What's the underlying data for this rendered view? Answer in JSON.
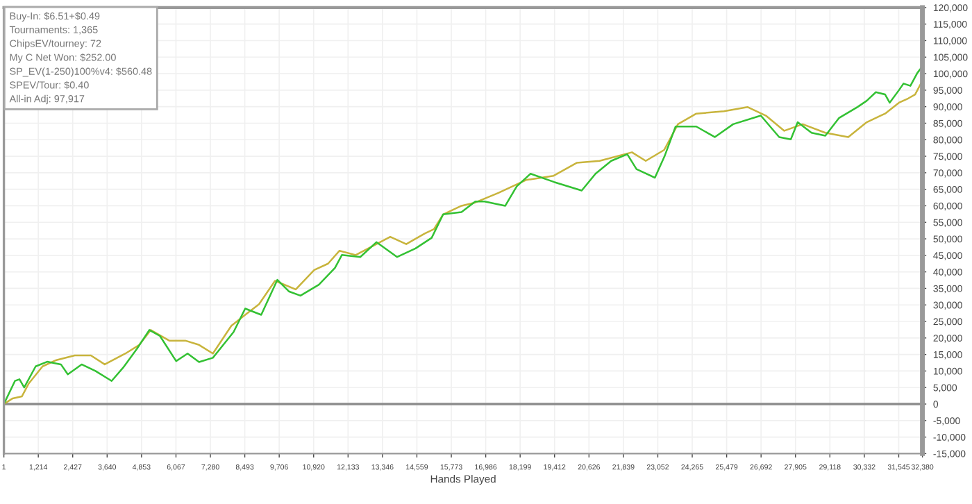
{
  "chart_data": {
    "type": "line",
    "xlabel": "Hands Played",
    "annotations": [
      "Buy-In: $6.51+$0.49",
      "Tournaments: 1,365",
      "ChipsEV/tourney: 72",
      "My C Net Won: $252.00",
      "SP_EV(1-250)100%v4: $560.48",
      "SPEV/Tour: $0.40",
      "All-in Adj: 97,917"
    ],
    "xlim": [
      1,
      32380
    ],
    "xticks": [
      1,
      {
        "value": 1214,
        "label": "1,214"
      },
      {
        "value": 2427,
        "label": "2,427"
      },
      {
        "value": 3640,
        "label": "3,640"
      },
      {
        "value": 4853,
        "label": "4,853"
      },
      {
        "value": 6067,
        "label": "6,067"
      },
      {
        "value": 7280,
        "label": "7,280"
      },
      {
        "value": 8493,
        "label": "8,493"
      },
      {
        "value": 9706,
        "label": "9,706"
      },
      {
        "value": 10920,
        "label": "10,920"
      },
      {
        "value": 12133,
        "label": "12,133"
      },
      {
        "value": 13346,
        "label": "13,346"
      },
      {
        "value": 14559,
        "label": "14,559"
      },
      {
        "value": 15773,
        "label": "15,773"
      },
      {
        "value": 16986,
        "label": "16,986"
      },
      {
        "value": 18199,
        "label": "18,199"
      },
      {
        "value": 19412,
        "label": "19,412"
      },
      {
        "value": 20626,
        "label": "20,626"
      },
      {
        "value": 21839,
        "label": "21,839"
      },
      {
        "value": 23052,
        "label": "23,052"
      },
      {
        "value": 24265,
        "label": "24,265"
      },
      {
        "value": 25479,
        "label": "25,479"
      },
      {
        "value": 26692,
        "label": "26,692"
      },
      {
        "value": 27905,
        "label": "27,905"
      },
      {
        "value": 29118,
        "label": "29,118"
      },
      {
        "value": 30332,
        "label": "30,332"
      },
      {
        "value": 31545,
        "label": "31,545"
      },
      {
        "value": 32380,
        "label": "32,380"
      }
    ],
    "ylim": [
      -15000,
      120000
    ],
    "yticks": [
      {
        "value": -15000,
        "label": "-15,000"
      },
      {
        "value": -10000,
        "label": "-10,000"
      },
      {
        "value": -5000,
        "label": "-5,000"
      },
      0,
      {
        "value": 5000,
        "label": "5,000"
      },
      {
        "value": 10000,
        "label": "10,000"
      },
      {
        "value": 15000,
        "label": "15,000"
      },
      {
        "value": 20000,
        "label": "20,000"
      },
      {
        "value": 25000,
        "label": "25,000"
      },
      {
        "value": 30000,
        "label": "30,000"
      },
      {
        "value": 35000,
        "label": "35,000"
      },
      {
        "value": 40000,
        "label": "40,000"
      },
      {
        "value": 45000,
        "label": "45,000"
      },
      {
        "value": 50000,
        "label": "50,000"
      },
      {
        "value": 55000,
        "label": "55,000"
      },
      {
        "value": 60000,
        "label": "60,000"
      },
      {
        "value": 65000,
        "label": "65,000"
      },
      {
        "value": 70000,
        "label": "70,000"
      },
      {
        "value": 75000,
        "label": "75,000"
      },
      {
        "value": 80000,
        "label": "80,000"
      },
      {
        "value": 85000,
        "label": "85,000"
      },
      {
        "value": 90000,
        "label": "90,000"
      },
      {
        "value": 95000,
        "label": "95,000"
      },
      {
        "value": 100000,
        "label": "100,000"
      },
      {
        "value": 105000,
        "label": "105,000"
      },
      {
        "value": 110000,
        "label": "110,000"
      },
      {
        "value": 115000,
        "label": "115,000"
      },
      {
        "value": 120000,
        "label": "120,000"
      }
    ],
    "grid": true,
    "legend": false,
    "marker": "none",
    "line_style": "solid",
    "ref_lines": [
      {
        "axis": "y",
        "value": 0,
        "color": "#8c8c8c"
      }
    ],
    "series": [
      {
        "color": "#c8b43c",
        "x": [
          1,
          308,
          634,
          877,
          1364,
          1851,
          2499,
          3068,
          3555,
          4286,
          4773,
          5177,
          5829,
          6394,
          6881,
          7368,
          8020,
          8507,
          8994,
          9559,
          10289,
          10942,
          11429,
          11832,
          12402,
          13133,
          13620,
          14184,
          14837,
          15158,
          15485,
          16132,
          16619,
          17432,
          18406,
          19380,
          20192,
          21000,
          22140,
          22627,
          23275,
          23762,
          24409,
          25383,
          26212,
          26861,
          27510,
          28158,
          28957,
          29766,
          30417,
          31064,
          31552,
          31879,
          32122,
          32380
        ],
        "values": [
          0,
          1700,
          2300,
          6200,
          11400,
          13300,
          14700,
          14700,
          12000,
          15300,
          17900,
          22400,
          19200,
          19200,
          17900,
          15300,
          23700,
          27000,
          30200,
          37300,
          34700,
          40600,
          42500,
          46400,
          45100,
          48400,
          50600,
          48400,
          51600,
          52900,
          57400,
          60000,
          61000,
          63900,
          67800,
          69100,
          73000,
          73600,
          76200,
          73600,
          76900,
          84700,
          87900,
          88600,
          89900,
          87300,
          82700,
          84700,
          82100,
          80800,
          85300,
          87900,
          91200,
          92500,
          93700,
          97900
        ]
      },
      {
        "color": "#33c133",
        "x": [
          1,
          391,
          551,
          717,
          1121,
          1525,
          2012,
          2255,
          2742,
          3229,
          3799,
          4203,
          4690,
          5128,
          5503,
          6073,
          6477,
          6881,
          7368,
          8098,
          8507,
          9072,
          9642,
          10046,
          10455,
          11103,
          11672,
          11915,
          12563,
          13133,
          13863,
          14510,
          15080,
          15485,
          16132,
          16619,
          16945,
          17675,
          18080,
          18566,
          19395,
          20369,
          20856,
          21410,
          21975,
          22301,
          22949,
          23290,
          23679,
          24409,
          25061,
          25709,
          26683,
          27331,
          27740,
          27983,
          28470,
          28957,
          29444,
          30093,
          30417,
          30739,
          31064,
          31225,
          31552,
          31713,
          31956,
          32200,
          32380
        ],
        "values": [
          0,
          7000,
          7500,
          5000,
          11400,
          12800,
          12000,
          9000,
          12000,
          10000,
          7000,
          11000,
          16700,
          22400,
          20600,
          13000,
          15300,
          12700,
          14000,
          21800,
          28900,
          27000,
          37600,
          34100,
          32800,
          36100,
          41200,
          45100,
          44500,
          49000,
          44500,
          47100,
          50300,
          57400,
          58100,
          61300,
          61300,
          60000,
          65900,
          69700,
          67200,
          64600,
          69700,
          73600,
          75600,
          71100,
          68500,
          75000,
          84000,
          84000,
          80800,
          84700,
          87300,
          80800,
          80100,
          85300,
          82100,
          81200,
          86600,
          89900,
          91800,
          94400,
          93700,
          91200,
          95000,
          97000,
          96300,
          100200,
          102200
        ]
      }
    ]
  }
}
